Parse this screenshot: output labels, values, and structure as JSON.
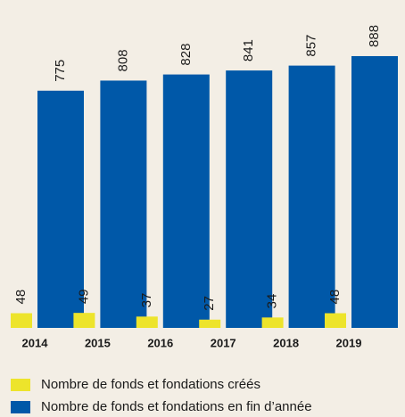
{
  "chart_data": {
    "type": "bar",
    "categories": [
      "2014",
      "2015",
      "2016",
      "2017",
      "2018",
      "2019"
    ],
    "series": [
      {
        "name": "Nombre de fonds et fondations créés",
        "color": "#ede42b",
        "values": [
          48,
          49,
          37,
          27,
          34,
          48
        ]
      },
      {
        "name": "Nombre de fonds et fondations en fin d’année",
        "color": "#0058a8",
        "values": [
          775,
          808,
          828,
          841,
          857,
          888
        ]
      }
    ]
  }
}
